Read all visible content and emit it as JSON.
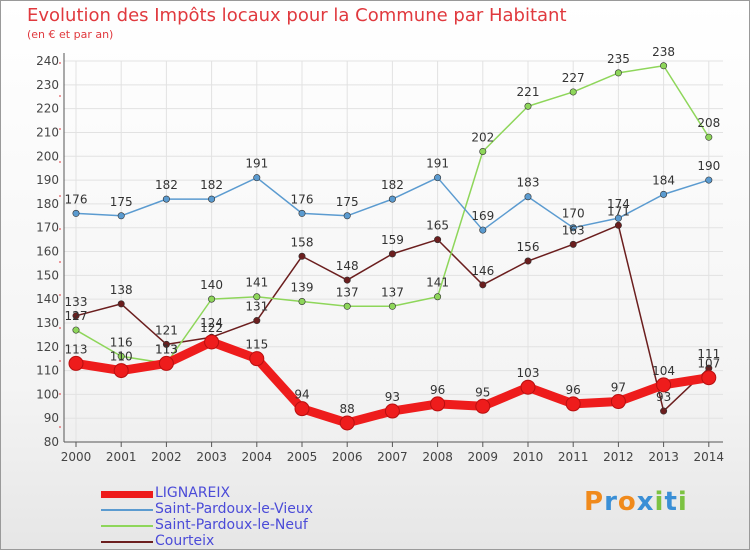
{
  "header": {
    "title": "Evolution des Impôts locaux pour la Commune par Habitant",
    "subtitle": "(en € et par an)"
  },
  "logo": {
    "letters": [
      "P",
      "r",
      "o",
      "x",
      "i",
      "t",
      "i"
    ],
    "colors": [
      "#f08a1c",
      "#3a8fd6",
      "#f08a1c",
      "#3a8fd6",
      "#7cc242",
      "#3a8fd6",
      "#7cc242"
    ]
  },
  "chart_data": {
    "type": "line",
    "title": "Evolution des Impôts locaux pour la Commune par Habitant",
    "subtitle": "(en € et par an)",
    "xlabel": "",
    "ylabel": "",
    "x": [
      "2000",
      "2001",
      "2002",
      "2003",
      "2004",
      "2005",
      "2006",
      "2007",
      "2008",
      "2009",
      "2010",
      "2011",
      "2012",
      "2013",
      "2014"
    ],
    "ylim": [
      80,
      240
    ],
    "yticks": [
      80,
      90,
      100,
      110,
      120,
      130,
      140,
      150,
      160,
      170,
      180,
      190,
      200,
      210,
      220,
      230,
      240
    ],
    "grid": true,
    "legend_position": "bottom-left",
    "series": [
      {
        "name": "LIGNAREIX",
        "color": "#ee1c1c",
        "values": [
          113,
          110,
          113,
          122,
          115,
          94,
          88,
          93,
          96,
          95,
          103,
          96,
          97,
          104,
          107
        ],
        "labels": [
          "113",
          "110",
          "113",
          "122",
          "115",
          "94",
          "88",
          "93",
          "96",
          "95",
          "103",
          "96",
          "97",
          "104",
          "107"
        ]
      },
      {
        "name": "Saint-Pardoux-le-Vieux",
        "color": "#5b9bd0",
        "values": [
          176,
          175,
          182,
          182,
          191,
          176,
          175,
          182,
          191,
          169,
          183,
          170,
          174,
          184,
          190
        ],
        "labels": [
          "176",
          "175",
          "182",
          "182",
          "191",
          "176",
          "175",
          "182",
          "191",
          "169",
          "183",
          "170",
          "174",
          "184",
          "190"
        ]
      },
      {
        "name": "Saint-Pardoux-le-Neuf",
        "color": "#8ed65a",
        "values": [
          127,
          116,
          113,
          140,
          141,
          139,
          137,
          137,
          141,
          202,
          221,
          227,
          235,
          238,
          208
        ],
        "labels": [
          "127",
          "116",
          "113",
          "140",
          "141",
          "139",
          "137",
          "137",
          "141",
          "202",
          "221",
          "227",
          "235",
          "238",
          "208"
        ]
      },
      {
        "name": "Courteix",
        "color": "#6b1e1e",
        "values": [
          133,
          138,
          121,
          124,
          131,
          158,
          148,
          159,
          165,
          146,
          156,
          163,
          171,
          93,
          111
        ],
        "labels": [
          "133",
          "138",
          "121",
          "124",
          "131",
          "158",
          "148",
          "159",
          "165",
          "146",
          "156",
          "163",
          "171",
          "93",
          "111"
        ]
      }
    ]
  }
}
